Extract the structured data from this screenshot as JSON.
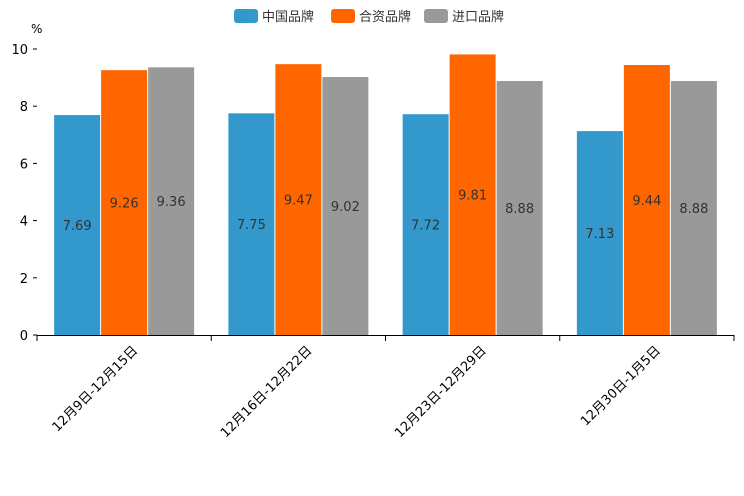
{
  "chart_data": {
    "type": "bar",
    "title": "",
    "xlabel": "",
    "ylabel": "",
    "y_unit": "%",
    "ylim": [
      0,
      10
    ],
    "y_ticks": [
      0,
      2,
      4,
      6,
      8,
      10
    ],
    "grid": false,
    "legend_position": "top-center",
    "categories": [
      "12月9日-12月15日",
      "12月16日-12月22日",
      "12月23日-12月29日",
      "12月30日-1月5日"
    ],
    "series": [
      {
        "name": "中国品牌",
        "color": "#3399CC",
        "values": [
          7.69,
          7.75,
          7.72,
          7.13
        ]
      },
      {
        "name": "合资品牌",
        "color": "#FF6600",
        "values": [
          9.26,
          9.47,
          9.81,
          9.44
        ]
      },
      {
        "name": "进口品牌",
        "color": "#999999",
        "values": [
          9.36,
          9.02,
          8.88,
          8.88
        ]
      }
    ]
  }
}
